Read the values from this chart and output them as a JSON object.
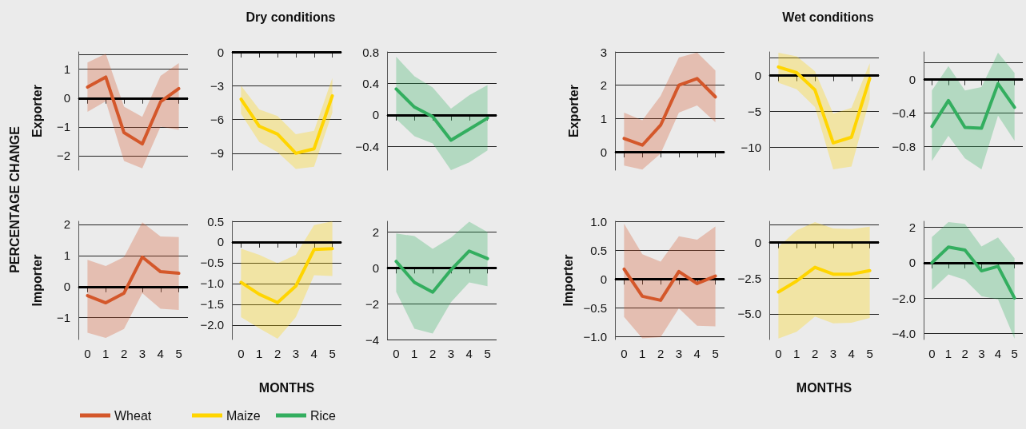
{
  "chart_data": [
    {
      "type": "line",
      "ylabel": "Exporter",
      "annotations": [
        "PERCENTAGE CHANGE"
      ],
      "categories": [
        "0",
        "1",
        "2",
        "3",
        "4",
        "5"
      ],
      "ylim": [
        -2.5,
        1.6
      ],
      "yticks": [
        -2,
        -1,
        0,
        1,
        {
          "value": 1.5,
          "label": null
        }
      ],
      "grid": "y",
      "tick_labels": "y",
      "ref_lines": [
        {
          "axis": "y",
          "value": 0,
          "color": "#000000"
        }
      ],
      "series": [
        {
          "color": "#d4572a",
          "values": [
            0.38,
            0.73,
            -1.2,
            -1.59,
            -0.13,
            0.33
          ],
          "lower": [
            -0.48,
            -0.11,
            -2.18,
            -2.44,
            -0.99,
            -1.1
          ],
          "upper": [
            1.23,
            1.54,
            -0.3,
            -0.65,
            0.77,
            1.21
          ]
        }
      ]
    },
    {
      "type": "line",
      "title": "Dry conditions",
      "categories": [
        "0",
        "1",
        "2",
        "3",
        "4",
        "5"
      ],
      "ylim": [
        -10.5,
        0
      ],
      "yticks": [
        -9,
        -6,
        -3,
        0
      ],
      "grid": "y",
      "tick_labels": "y",
      "ref_lines": [
        {
          "axis": "y",
          "value": 0,
          "color": "#000000"
        }
      ],
      "series": [
        {
          "color": "#ffd500",
          "values": [
            -4.2,
            -6.6,
            -7.3,
            -9.0,
            -8.6,
            -3.9
          ],
          "lower": [
            -5.5,
            -8.0,
            -8.9,
            -10.4,
            -10.2,
            -5.4
          ],
          "upper": [
            -3.0,
            -5.1,
            -5.7,
            -7.3,
            -7.0,
            -2.3
          ]
        }
      ]
    },
    {
      "type": "line",
      "categories": [
        "0",
        "1",
        "2",
        "3",
        "4",
        "5"
      ],
      "ylim": [
        -0.7,
        0.8
      ],
      "yticks": [
        -0.4,
        0,
        0.4,
        0.8
      ],
      "grid": "y",
      "tick_labels": "y",
      "ref_lines": [
        {
          "axis": "y",
          "value": 0,
          "color": "#000000"
        }
      ],
      "series": [
        {
          "color": "#33ae5f",
          "values": [
            0.33,
            0.1,
            -0.02,
            -0.32,
            -0.18,
            -0.04
          ],
          "lower": [
            -0.05,
            -0.27,
            -0.36,
            -0.7,
            -0.6,
            -0.45
          ],
          "upper": [
            0.74,
            0.49,
            0.35,
            0.08,
            0.25,
            0.38
          ]
        }
      ]
    },
    {
      "type": "line",
      "ylabel": "Exporter",
      "categories": [
        "0",
        "1",
        "2",
        "3",
        "4",
        "5"
      ],
      "ylim": [
        -0.55,
        3
      ],
      "yticks": [
        0,
        1,
        2,
        3
      ],
      "grid": "y",
      "tick_labels": "y",
      "ref_lines": [
        {
          "axis": "y",
          "value": 0,
          "color": "#000000"
        }
      ],
      "series": [
        {
          "color": "#d4572a",
          "values": [
            0.4,
            0.2,
            0.8,
            2.0,
            2.2,
            1.65
          ],
          "lower": [
            -0.41,
            -0.53,
            -0.05,
            1.18,
            1.39,
            0.89
          ],
          "upper": [
            1.18,
            0.95,
            1.68,
            2.83,
            2.98,
            2.44
          ]
        }
      ]
    },
    {
      "type": "line",
      "title": "Wet conditions",
      "categories": [
        "0",
        "1",
        "2",
        "3",
        "4",
        "5"
      ],
      "ylim": [
        -13.2,
        3.3
      ],
      "yticks": [
        -10,
        -5,
        0,
        {
          "value": 2.5,
          "label": null
        }
      ],
      "grid": "y",
      "tick_labels": "y",
      "ref_lines": [
        {
          "axis": "y",
          "value": 0,
          "color": "#000000"
        }
      ],
      "series": [
        {
          "color": "#ffd500",
          "values": [
            1.2,
            0.4,
            -2.0,
            -9.4,
            -8.6,
            -0.4
          ],
          "lower": [
            -1.0,
            -1.9,
            -4.4,
            -13.1,
            -12.7,
            -3.3
          ],
          "upper": [
            3.2,
            2.7,
            0.6,
            -5.3,
            -4.5,
            1.7
          ]
        }
      ]
    },
    {
      "type": "line",
      "categories": [
        "0",
        "1",
        "2",
        "3",
        "4",
        "5"
      ],
      "ylim": [
        -1.08,
        0.33
      ],
      "yticks": [
        {
          "value": -0.8,
          "label": "−0.8"
        },
        {
          "value": -0.4,
          "label": "−0.4"
        },
        0,
        {
          "value": 0.2,
          "label": null
        }
      ],
      "grid": "y",
      "tick_labels": "y",
      "ref_lines": [
        {
          "axis": "y",
          "value": 0,
          "color": "#000000"
        }
      ],
      "series": [
        {
          "color": "#33ae5f",
          "values": [
            -0.56,
            -0.25,
            -0.57,
            -0.58,
            -0.05,
            -0.33
          ],
          "lower": [
            -0.97,
            -0.67,
            -0.94,
            -1.07,
            -0.43,
            -0.73
          ],
          "upper": [
            -0.13,
            0.16,
            -0.13,
            -0.09,
            0.32,
            0.08
          ]
        }
      ]
    },
    {
      "type": "line",
      "ylabel": "Importer",
      "categories": [
        "0",
        "1",
        "2",
        "3",
        "4",
        "5"
      ],
      "ylim": [
        -1.7,
        2.1
      ],
      "yticks": [
        -1,
        0,
        1,
        2
      ],
      "grid": "y",
      "legend": "bottom",
      "ref_lines": [
        {
          "axis": "y",
          "value": 0,
          "color": "#000000"
        }
      ],
      "series": [
        {
          "name": "Wheat",
          "color": "#d4572a",
          "values": [
            -0.29,
            -0.52,
            -0.21,
            0.95,
            0.48,
            0.43
          ],
          "lower": [
            -1.48,
            -1.65,
            -1.36,
            -0.21,
            -0.71,
            -0.75
          ],
          "upper": [
            0.86,
            0.66,
            0.95,
            2.07,
            1.61,
            1.59
          ]
        }
      ]
    },
    {
      "type": "line",
      "xlabel": "MONTHS",
      "categories": [
        "0",
        "1",
        "2",
        "3",
        "4",
        "5"
      ],
      "ylim": [
        -2.35,
        0.5
      ],
      "yticks": [
        {
          "value": -2,
          "label": "−2.0"
        },
        -1.5,
        {
          "value": -1,
          "label": "−1.0"
        },
        -0.5,
        0,
        0.5
      ],
      "grid": "y",
      "legend": "bottom",
      "ref_lines": [
        {
          "axis": "y",
          "value": 0,
          "color": "#000000"
        }
      ],
      "series": [
        {
          "name": "Maize",
          "color": "#ffd500",
          "values": [
            -0.97,
            -1.26,
            -1.46,
            -1.06,
            -0.18,
            -0.16
          ],
          "lower": [
            -1.81,
            -2.08,
            -2.33,
            -1.81,
            -0.8,
            -0.82
          ],
          "upper": [
            -0.16,
            -0.31,
            -0.51,
            -0.31,
            0.41,
            0.5
          ]
        }
      ]
    },
    {
      "type": "line",
      "categories": [
        "0",
        "1",
        "2",
        "3",
        "4",
        "5"
      ],
      "ylim": [
        -4,
        2.6
      ],
      "yticks": [
        -4,
        -2,
        0,
        2
      ],
      "grid": "y",
      "legend": "bottom",
      "ref_lines": [
        {
          "axis": "y",
          "value": 0,
          "color": "#000000"
        }
      ],
      "series": [
        {
          "name": "Rice",
          "color": "#33ae5f",
          "values": [
            0.36,
            -0.81,
            -1.36,
            -0.11,
            0.94,
            0.52
          ],
          "lower": [
            -1.33,
            -3.4,
            -3.67,
            -1.91,
            -0.81,
            -1.02
          ],
          "upper": [
            1.92,
            1.77,
            1.06,
            1.69,
            2.58,
            2.0
          ]
        }
      ]
    },
    {
      "type": "line",
      "ylabel": "Importer",
      "categories": [
        "0",
        "1",
        "2",
        "3",
        "4",
        "5"
      ],
      "ylim": [
        -1.05,
        1.0
      ],
      "yticks": [
        {
          "value": -1,
          "label": "−1.0"
        },
        -0.5,
        0,
        0.5,
        {
          "value": 1,
          "label": "1.0"
        }
      ],
      "grid": "y",
      "ref_lines": [
        {
          "axis": "y",
          "value": 0,
          "color": "#000000"
        }
      ],
      "series": [
        {
          "color": "#d4572a",
          "values": [
            0.17,
            -0.3,
            -0.37,
            0.13,
            -0.08,
            0.05
          ],
          "lower": [
            -0.66,
            -1.03,
            -1.01,
            -0.51,
            -0.81,
            -0.82
          ],
          "upper": [
            0.96,
            0.43,
            0.3,
            0.74,
            0.68,
            0.91
          ]
        }
      ]
    },
    {
      "type": "line",
      "xlabel": "MONTHS",
      "categories": [
        "0",
        "1",
        "2",
        "3",
        "4",
        "5"
      ],
      "ylim": [
        -6.8,
        1.5
      ],
      "yticks": [
        {
          "value": -5,
          "label": "−5.0"
        },
        -2.5,
        0,
        {
          "value": 1.25,
          "label": null
        }
      ],
      "grid": "y",
      "ref_lines": [
        {
          "axis": "y",
          "value": 0,
          "color": "#000000"
        }
      ],
      "series": [
        {
          "color": "#ffd500",
          "values": [
            -3.46,
            -2.69,
            -1.73,
            -2.21,
            -2.21,
            -1.96
          ],
          "lower": [
            -6.73,
            -6.25,
            -5.19,
            -5.67,
            -5.62,
            -5.29
          ],
          "upper": [
            -0.29,
            0.87,
            1.44,
            1.0,
            0.96,
            1.12
          ]
        }
      ]
    },
    {
      "type": "line",
      "categories": [
        "0",
        "1",
        "2",
        "3",
        "4",
        "5"
      ],
      "ylim": [
        -4.35,
        2.35
      ],
      "yticks": [
        {
          "value": -4,
          "label": "−4.0"
        },
        {
          "value": -2,
          "label": "−2.0"
        },
        0,
        2
      ],
      "grid": "y",
      "ref_lines": [
        {
          "axis": "y",
          "value": 0,
          "color": "#000000"
        }
      ],
      "series": [
        {
          "color": "#33ae5f",
          "values": [
            0,
            0.89,
            0.72,
            -0.46,
            -0.2,
            -2.0
          ],
          "lower": [
            -1.54,
            -0.66,
            -0.97,
            -1.89,
            -2.08,
            -4.31
          ],
          "upper": [
            1.46,
            2.31,
            2.2,
            0.92,
            1.43,
            0.26
          ]
        }
      ]
    }
  ]
}
